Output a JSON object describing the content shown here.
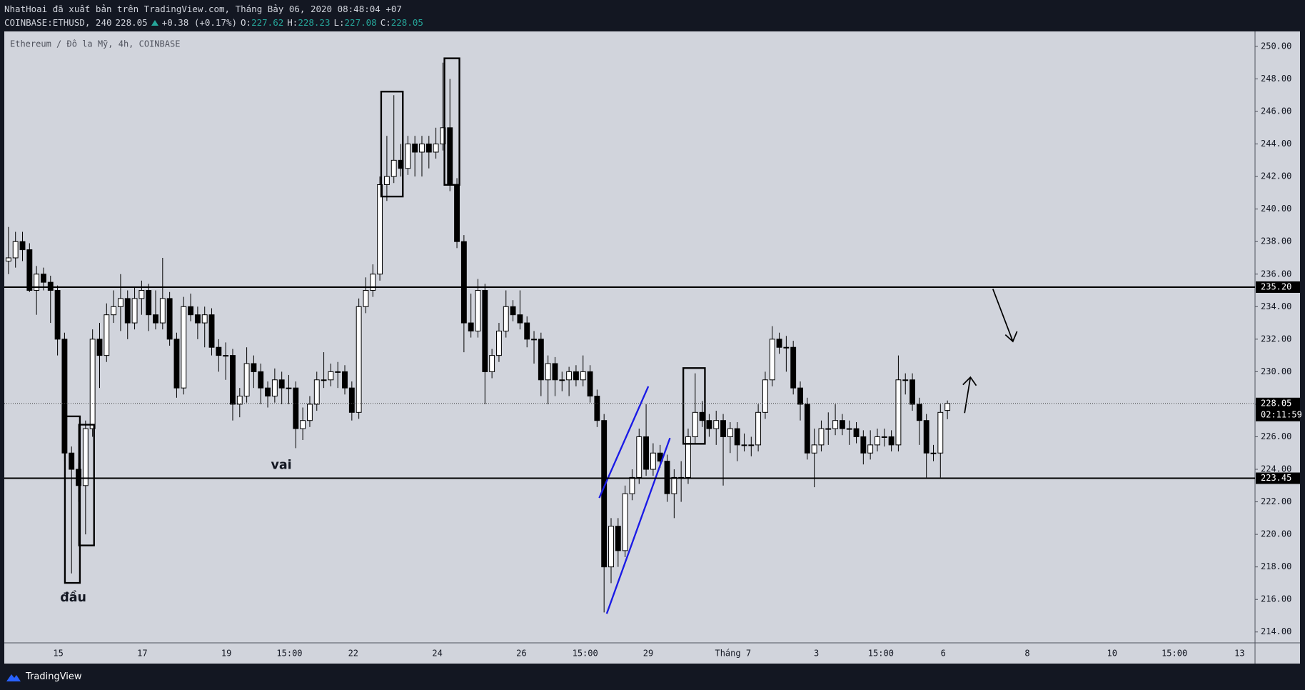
{
  "header": {
    "publisher": "NhatHoai đã xuất bản trên TradingView.com, Tháng Bảy 06, 2020 08:48:04 +07",
    "symbol": "COINBASE:ETHUSD, 240",
    "last": 228.05,
    "change": "+0.38 (+0.17%)",
    "stats": [
      {
        "label": "O:",
        "value": 227.62
      },
      {
        "label": "H:",
        "value": 228.23
      },
      {
        "label": "L:",
        "value": 227.08
      },
      {
        "label": "C:",
        "value": 228.05
      }
    ]
  },
  "chart_data": {
    "type": "candlestick",
    "title": "Ethereum / Đô la Mỹ, 4h, COINBASE",
    "up_color": "#ffffff",
    "down_color": "#000000",
    "ohlc": [
      [
        236.8,
        238.9,
        236.0,
        237.0
      ],
      [
        237.0,
        238.6,
        236.4,
        238.0
      ],
      [
        238.0,
        238.6,
        236.8,
        237.5
      ],
      [
        237.5,
        237.9,
        234.9,
        235.0
      ],
      [
        235.0,
        236.5,
        233.5,
        236.0
      ],
      [
        236.0,
        236.4,
        235.0,
        235.5
      ],
      [
        235.5,
        235.9,
        233.0,
        235.0
      ],
      [
        235.0,
        235.3,
        231.0,
        232.0
      ],
      [
        232.0,
        232.4,
        224.5,
        225.0
      ],
      [
        225.0,
        225.4,
        217.6,
        224.0
      ],
      [
        224.0,
        224.4,
        222.0,
        223.0
      ],
      [
        223.0,
        227.0,
        220.0,
        226.5
      ],
      [
        226.5,
        232.6,
        226.0,
        232.0
      ],
      [
        232.0,
        233.0,
        229.0,
        231.0
      ],
      [
        231.0,
        234.2,
        230.6,
        233.5
      ],
      [
        233.5,
        235.0,
        233.0,
        234.0
      ],
      [
        234.0,
        236.0,
        232.5,
        234.5
      ],
      [
        234.5,
        235.0,
        232.0,
        233.0
      ],
      [
        233.0,
        235.2,
        232.6,
        234.5
      ],
      [
        234.5,
        235.6,
        233.5,
        235.0
      ],
      [
        235.0,
        235.4,
        232.5,
        233.5
      ],
      [
        233.5,
        235.0,
        232.6,
        233.0
      ],
      [
        233.0,
        237.0,
        232.6,
        234.5
      ],
      [
        234.5,
        234.9,
        231.6,
        232.0
      ],
      [
        232.0,
        232.4,
        228.4,
        229.0
      ],
      [
        229.0,
        234.6,
        228.6,
        234.0
      ],
      [
        234.0,
        234.8,
        233.1,
        233.5
      ],
      [
        233.5,
        234.0,
        232.0,
        233.0
      ],
      [
        233.0,
        234.0,
        231.5,
        233.5
      ],
      [
        233.5,
        233.9,
        231.0,
        231.5
      ],
      [
        231.5,
        232.0,
        230.0,
        231.0
      ],
      [
        231.0,
        231.8,
        229.5,
        231.0
      ],
      [
        231.0,
        231.4,
        227.0,
        228.0
      ],
      [
        228.0,
        229.0,
        227.2,
        228.5
      ],
      [
        228.5,
        231.5,
        228.1,
        230.5
      ],
      [
        230.5,
        231.0,
        229.0,
        230.0
      ],
      [
        230.0,
        230.5,
        228.0,
        229.0
      ],
      [
        229.0,
        229.4,
        227.8,
        228.5
      ],
      [
        228.5,
        230.2,
        228.1,
        229.5
      ],
      [
        229.5,
        230.0,
        228.0,
        229.0
      ],
      [
        229.0,
        229.8,
        228.0,
        229.0
      ],
      [
        229.0,
        229.4,
        225.3,
        226.5
      ],
      [
        226.5,
        227.8,
        225.8,
        227.0
      ],
      [
        227.0,
        228.5,
        226.6,
        228.0
      ],
      [
        228.0,
        230.0,
        227.6,
        229.5
      ],
      [
        229.5,
        231.2,
        229.0,
        229.5
      ],
      [
        229.5,
        230.5,
        229.1,
        230.0
      ],
      [
        230.0,
        230.6,
        229.0,
        230.0
      ],
      [
        230.0,
        230.4,
        228.6,
        229.0
      ],
      [
        229.0,
        229.4,
        227.0,
        227.5
      ],
      [
        227.5,
        234.5,
        227.1,
        234.0
      ],
      [
        234.0,
        235.8,
        233.6,
        235.0
      ],
      [
        235.0,
        236.6,
        234.6,
        236.0
      ],
      [
        236.0,
        242.0,
        235.6,
        241.5
      ],
      [
        241.5,
        244.5,
        240.5,
        242.0
      ],
      [
        242.0,
        247.0,
        241.6,
        243.0
      ],
      [
        243.0,
        244.0,
        242.0,
        242.5
      ],
      [
        242.5,
        244.5,
        242.1,
        244.0
      ],
      [
        244.0,
        244.5,
        242.0,
        243.5
      ],
      [
        243.5,
        244.5,
        242.0,
        244.0
      ],
      [
        244.0,
        244.5,
        242.5,
        243.5
      ],
      [
        243.5,
        245.0,
        243.1,
        244.0
      ],
      [
        244.0,
        249.0,
        243.6,
        245.0
      ],
      [
        245.0,
        248.0,
        241.1,
        241.5
      ],
      [
        241.5,
        241.9,
        237.6,
        238.0
      ],
      [
        238.0,
        238.4,
        231.2,
        233.0
      ],
      [
        233.0,
        234.8,
        232.1,
        232.5
      ],
      [
        232.5,
        235.7,
        232.1,
        235.0
      ],
      [
        235.0,
        235.4,
        228.0,
        230.0
      ],
      [
        230.0,
        231.4,
        229.6,
        231.0
      ],
      [
        231.0,
        233.0,
        230.6,
        232.5
      ],
      [
        232.5,
        235.0,
        232.1,
        234.0
      ],
      [
        234.0,
        234.4,
        233.1,
        233.5
      ],
      [
        233.5,
        235.0,
        232.6,
        233.0
      ],
      [
        233.0,
        233.4,
        231.5,
        232.0
      ],
      [
        232.0,
        232.5,
        230.5,
        232.0
      ],
      [
        232.0,
        232.4,
        228.5,
        229.5
      ],
      [
        229.5,
        231.0,
        228.0,
        230.5
      ],
      [
        230.5,
        230.9,
        228.5,
        229.5
      ],
      [
        229.5,
        230.0,
        228.8,
        229.5
      ],
      [
        229.5,
        230.3,
        228.5,
        230.0
      ],
      [
        230.0,
        230.4,
        229.1,
        229.5
      ],
      [
        229.5,
        231.0,
        229.1,
        230.0
      ],
      [
        230.0,
        230.4,
        228.1,
        228.5
      ],
      [
        228.5,
        228.9,
        226.6,
        227.0
      ],
      [
        227.0,
        227.4,
        215.2,
        218.0
      ],
      [
        218.0,
        221.0,
        217.0,
        220.5
      ],
      [
        220.5,
        221.0,
        218.0,
        219.0
      ],
      [
        219.0,
        223.0,
        218.6,
        222.5
      ],
      [
        222.5,
        224.0,
        222.1,
        223.5
      ],
      [
        223.5,
        226.5,
        223.1,
        226.0
      ],
      [
        226.0,
        228.0,
        223.6,
        224.0
      ],
      [
        224.0,
        225.6,
        223.6,
        225.0
      ],
      [
        225.0,
        225.5,
        224.1,
        224.5
      ],
      [
        224.5,
        224.9,
        222.0,
        222.5
      ],
      [
        222.5,
        224.0,
        221.0,
        223.5
      ],
      [
        223.5,
        224.5,
        222.0,
        223.5
      ],
      [
        223.5,
        226.5,
        223.1,
        226.0
      ],
      [
        226.0,
        229.9,
        225.6,
        227.5
      ],
      [
        227.5,
        228.2,
        226.6,
        227.0
      ],
      [
        227.0,
        227.4,
        226.0,
        226.5
      ],
      [
        226.5,
        227.6,
        225.5,
        227.0
      ],
      [
        227.0,
        227.4,
        223.0,
        226.0
      ],
      [
        226.0,
        226.9,
        225.0,
        226.5
      ],
      [
        226.5,
        226.9,
        224.5,
        225.5
      ],
      [
        225.5,
        226.2,
        225.1,
        225.5
      ],
      [
        225.5,
        226.0,
        224.8,
        225.5
      ],
      [
        225.5,
        228.0,
        225.1,
        227.5
      ],
      [
        227.5,
        230.0,
        227.1,
        229.5
      ],
      [
        229.5,
        232.8,
        229.1,
        232.0
      ],
      [
        232.0,
        232.4,
        231.1,
        231.5
      ],
      [
        231.5,
        232.2,
        230.0,
        231.5
      ],
      [
        231.5,
        231.9,
        228.6,
        229.0
      ],
      [
        229.0,
        229.4,
        227.0,
        228.0
      ],
      [
        228.0,
        228.4,
        224.6,
        225.0
      ],
      [
        225.0,
        226.5,
        222.9,
        225.5
      ],
      [
        225.5,
        227.0,
        225.1,
        226.5
      ],
      [
        226.5,
        227.5,
        225.5,
        226.5
      ],
      [
        226.5,
        228.0,
        226.1,
        227.0
      ],
      [
        227.0,
        227.4,
        226.1,
        226.5
      ],
      [
        226.5,
        227.0,
        225.5,
        226.5
      ],
      [
        226.5,
        226.9,
        225.6,
        226.0
      ],
      [
        226.0,
        226.4,
        224.3,
        225.0
      ],
      [
        225.0,
        226.4,
        224.6,
        225.5
      ],
      [
        225.5,
        226.5,
        225.1,
        226.0
      ],
      [
        226.0,
        226.5,
        225.4,
        226.0
      ],
      [
        226.0,
        226.4,
        225.1,
        225.5
      ],
      [
        225.5,
        231.0,
        225.1,
        229.5
      ],
      [
        229.5,
        229.9,
        228.6,
        229.5
      ],
      [
        229.5,
        229.9,
        227.6,
        228.0
      ],
      [
        228.0,
        228.4,
        225.5,
        227.0
      ],
      [
        227.0,
        227.4,
        223.5,
        225.0
      ],
      [
        225.0,
        225.5,
        224.5,
        225.0
      ],
      [
        225.0,
        228.0,
        223.5,
        227.5
      ],
      [
        227.62,
        228.23,
        227.08,
        228.05
      ]
    ],
    "ylim": [
      213.33,
      250.92
    ],
    "yticks": [
      {
        "value": 214,
        "label": "214.00"
      },
      {
        "value": 216,
        "label": "216.00"
      },
      {
        "value": 218,
        "label": "218.00"
      },
      {
        "value": 220,
        "label": "220.00"
      },
      {
        "value": 222,
        "label": "222.00"
      },
      {
        "value": 224,
        "label": "224.00"
      },
      {
        "value": 226,
        "label": "226.00"
      },
      {
        "value": 228,
        "label": "228.00"
      },
      {
        "value": 230,
        "label": "230.00"
      },
      {
        "value": 232,
        "label": "232.00"
      },
      {
        "value": 234,
        "label": "234.00"
      },
      {
        "value": 236,
        "label": "236.00"
      },
      {
        "value": 238,
        "label": "238.00"
      },
      {
        "value": 240,
        "label": "240.00"
      },
      {
        "value": 242,
        "label": "242.00"
      },
      {
        "value": 244,
        "label": "244.00"
      },
      {
        "value": 246,
        "label": "246.00"
      },
      {
        "value": 248,
        "label": "248.00"
      },
      {
        "value": 250,
        "label": "250.00"
      }
    ],
    "xlim": [
      -0.6,
      177.9
    ],
    "xticks": [
      {
        "value": 7.1,
        "label": "15"
      },
      {
        "value": 19.1,
        "label": "17"
      },
      {
        "value": 31.1,
        "label": "19"
      },
      {
        "value": 40.1,
        "label": "15:00"
      },
      {
        "value": 49.2,
        "label": "22"
      },
      {
        "value": 61.2,
        "label": "24"
      },
      {
        "value": 73.2,
        "label": "26"
      },
      {
        "value": 82.3,
        "label": "15:00"
      },
      {
        "value": 91.3,
        "label": "29"
      },
      {
        "value": 103.4,
        "label": "Tháng 7"
      },
      {
        "value": 115.3,
        "label": "3"
      },
      {
        "value": 124.5,
        "label": "15:00"
      },
      {
        "value": 133.4,
        "label": "6"
      },
      {
        "value": 145.4,
        "label": "8"
      },
      {
        "value": 157.5,
        "label": "10"
      },
      {
        "value": 166.4,
        "label": "15:00"
      },
      {
        "value": 175.7,
        "label": "13"
      }
    ],
    "hlines": [
      {
        "value": 235.2,
        "label": "235.20"
      },
      {
        "value": 223.45,
        "label": "223.45"
      }
    ],
    "last_price": {
      "value": 228.05,
      "label": "228.05"
    },
    "countdown": "02:11:59",
    "annotations": [
      "đầu",
      "vai"
    ]
  },
  "footer": {
    "brand": "TradingView"
  }
}
